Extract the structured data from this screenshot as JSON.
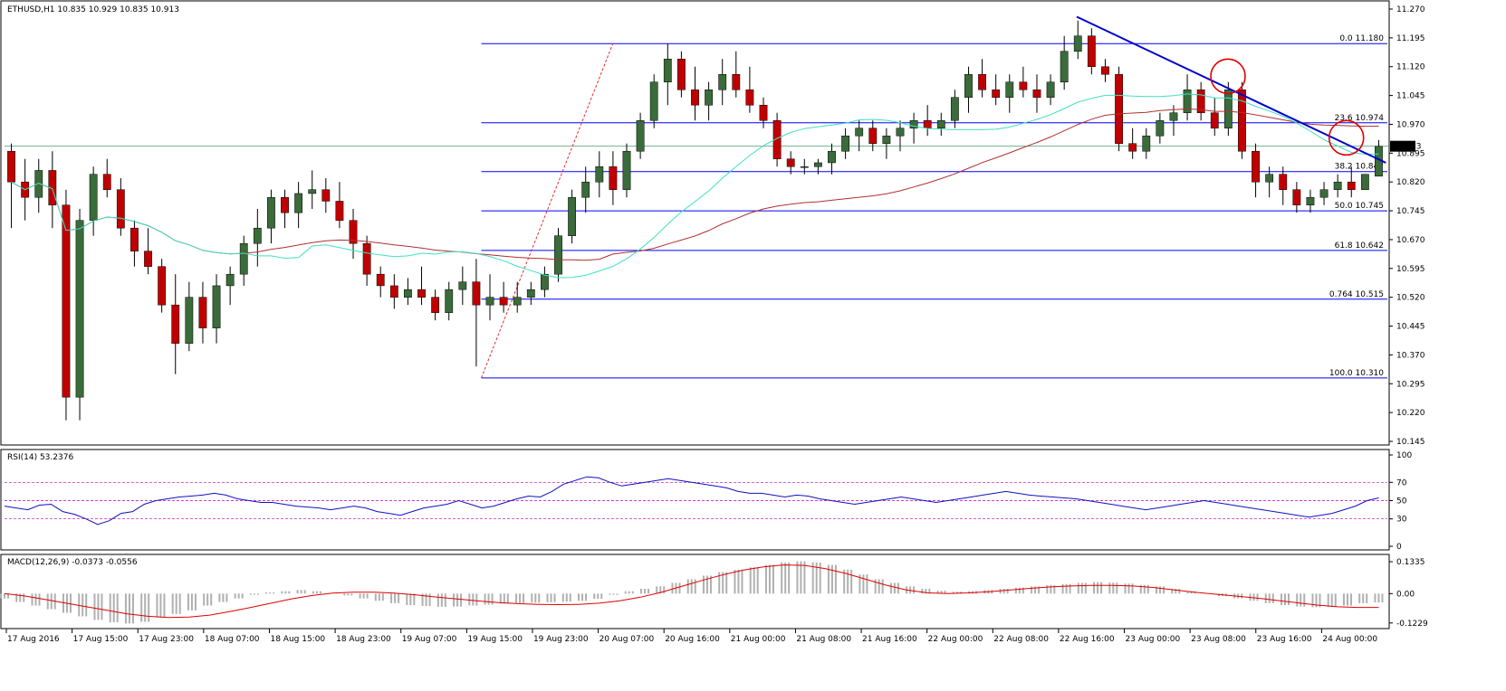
{
  "chart_data": {
    "type": "candlestick",
    "main": {
      "title": "ETHUSD,H1  10.835 10.929 10.835 10.913",
      "current_price_label": "10.913",
      "y_axis_ticks": [
        "11.270",
        "11.195",
        "11.120",
        "11.045",
        "10.970",
        "10.895",
        "10.820",
        "10.745",
        "10.670",
        "10.595",
        "10.520",
        "10.445",
        "10.370",
        "10.295",
        "10.220",
        "10.145"
      ],
      "ylim": [
        10.145,
        11.27
      ],
      "fib_levels": [
        {
          "label": "0.0  11.180",
          "value": 11.18
        },
        {
          "label": "23.6  10.974",
          "value": 10.974
        },
        {
          "label": "38.2  10.847",
          "value": 10.847
        },
        {
          "label": "50.0  10.745",
          "value": 10.745
        },
        {
          "label": "61.8  10.642",
          "value": 10.642
        },
        {
          "label": "0.764  10.515",
          "value": 10.515
        },
        {
          "label": "100.0  10.310",
          "value": 10.31
        }
      ],
      "trendline": {
        "from": [
          162,
          11.25
        ],
        "to": [
          209,
          10.87
        ],
        "color": "#0000cc"
      },
      "highlight_circles": [
        {
          "x": 185,
          "y": 11.095
        },
        {
          "x": 203,
          "y": 10.935
        }
      ],
      "colors": {
        "bull": "#3a6b3a",
        "bear": "#c00000",
        "fib": "#0000ff",
        "ma_slow": "#b03030",
        "ma_fast": "#40e0c0"
      }
    },
    "x_axis_labels": [
      {
        "bar": 0,
        "label": "17 Aug 2016"
      },
      {
        "bar": 10,
        "label": "17 Aug 15:00"
      },
      {
        "bar": 20,
        "label": "17 Aug 23:00"
      },
      {
        "bar": 30,
        "label": "18 Aug 07:00"
      },
      {
        "bar": 40,
        "label": "18 Aug 15:00"
      },
      {
        "bar": 50,
        "label": "18 Aug 23:00"
      },
      {
        "bar": 60,
        "label": "19 Aug 07:00"
      },
      {
        "bar": 70,
        "label": "19 Aug 15:00"
      },
      {
        "bar": 80,
        "label": "19 Aug 23:00"
      },
      {
        "bar": 90,
        "label": "20 Aug 07:00"
      },
      {
        "bar": 100,
        "label": "20 Aug 16:00"
      },
      {
        "bar": 110,
        "label": "21 Aug 00:00"
      },
      {
        "bar": 120,
        "label": "21 Aug 08:00"
      },
      {
        "bar": 130,
        "label": "21 Aug 16:00"
      },
      {
        "bar": 140,
        "label": "22 Aug 00:00"
      },
      {
        "bar": 150,
        "label": "22 Aug 08:00"
      },
      {
        "bar": 160,
        "label": "22 Aug 16:00"
      },
      {
        "bar": 170,
        "label": "23 Aug 00:00"
      },
      {
        "bar": 180,
        "label": "23 Aug 08:00"
      },
      {
        "bar": 190,
        "label": "23 Aug 16:00"
      },
      {
        "bar": 200,
        "label": "24 Aug 00:00"
      }
    ],
    "rsi": {
      "title": "RSI(14) 53.2376",
      "ticks": [
        "100",
        "70",
        "50",
        "30",
        "0"
      ],
      "ylim": [
        0,
        100
      ],
      "levels": [
        70,
        50,
        30
      ],
      "values": [
        44,
        42,
        40,
        45,
        46,
        38,
        35,
        30,
        24,
        28,
        36,
        38,
        46,
        50,
        52,
        54,
        55,
        56,
        58,
        56,
        52,
        50,
        48,
        48,
        46,
        44,
        43,
        42,
        40,
        42,
        44,
        42,
        38,
        36,
        34,
        38,
        42,
        44,
        46,
        50,
        46,
        42,
        44,
        48,
        52,
        55,
        54,
        60,
        68,
        72,
        76,
        75,
        70,
        66,
        68,
        70,
        72,
        74,
        72,
        70,
        68,
        66,
        64,
        60,
        58,
        58,
        56,
        54,
        56,
        55,
        52,
        50,
        48,
        46,
        48,
        50,
        52,
        54,
        52,
        50,
        48,
        50,
        52,
        54,
        56,
        58,
        60,
        58,
        56,
        55,
        54,
        53,
        52,
        50,
        48,
        46,
        44,
        42,
        40,
        42,
        44,
        46,
        48,
        50,
        48,
        46,
        44,
        42,
        40,
        38,
        36,
        34,
        32,
        34,
        36,
        40,
        44,
        50,
        53
      ]
    },
    "macd": {
      "title": "MACD(12,26,9) -0.0373 -0.0556",
      "ticks": [
        "0.1335",
        "0.00",
        "-0.1229"
      ],
      "ylim": [
        -0.135,
        0.145
      ],
      "histogram": [
        -0.02,
        -0.035,
        -0.05,
        -0.065,
        -0.08,
        -0.095,
        -0.11,
        -0.12,
        -0.125,
        -0.118,
        -0.1,
        -0.085,
        -0.07,
        -0.05,
        -0.035,
        -0.02,
        -0.005,
        0.005,
        0.01,
        0.015,
        0.01,
        0.002,
        -0.008,
        -0.02,
        -0.03,
        -0.04,
        -0.048,
        -0.052,
        -0.055,
        -0.054,
        -0.05,
        -0.046,
        -0.042,
        -0.04,
        -0.038,
        -0.036,
        -0.034,
        -0.03,
        -0.022,
        -0.005,
        0.01,
        0.02,
        0.03,
        0.045,
        0.06,
        0.075,
        0.09,
        0.1,
        0.11,
        0.12,
        0.13,
        0.135,
        0.13,
        0.12,
        0.1,
        0.08,
        0.06,
        0.045,
        0.03,
        0.02,
        0.012,
        0.008,
        0.01,
        0.015,
        0.02,
        0.025,
        0.03,
        0.035,
        0.04,
        0.045,
        0.048,
        0.046,
        0.042,
        0.036,
        0.03,
        0.02,
        0.01,
        0.0,
        -0.01,
        -0.02,
        -0.03,
        -0.04,
        -0.048,
        -0.054,
        -0.057,
        -0.056,
        -0.05,
        -0.04,
        -0.037
      ],
      "signal": [
        0.0,
        -0.01,
        -0.025,
        -0.04,
        -0.055,
        -0.07,
        -0.085,
        -0.095,
        -0.1,
        -0.098,
        -0.09,
        -0.075,
        -0.058,
        -0.04,
        -0.022,
        -0.008,
        0.002,
        0.006,
        0.006,
        0.002,
        -0.005,
        -0.014,
        -0.022,
        -0.03,
        -0.037,
        -0.042,
        -0.045,
        -0.046,
        -0.045,
        -0.04,
        -0.03,
        -0.015,
        0.005,
        0.03,
        0.055,
        0.078,
        0.098,
        0.112,
        0.12,
        0.118,
        0.105,
        0.085,
        0.06,
        0.035,
        0.015,
        0.003,
        0.0,
        0.003,
        0.008,
        0.015,
        0.022,
        0.028,
        0.032,
        0.034,
        0.034,
        0.032,
        0.026,
        0.016,
        0.006,
        -0.002,
        -0.01,
        -0.018,
        -0.028,
        -0.038,
        -0.048,
        -0.055,
        -0.058,
        -0.058
      ]
    },
    "candles": [
      [
        10.9,
        10.92,
        10.7,
        10.82
      ],
      [
        10.82,
        10.88,
        10.72,
        10.78
      ],
      [
        10.78,
        10.88,
        10.74,
        10.85
      ],
      [
        10.85,
        10.9,
        10.7,
        10.76
      ],
      [
        10.76,
        10.8,
        10.2,
        10.26
      ],
      [
        10.26,
        10.75,
        10.2,
        10.72
      ],
      [
        10.72,
        10.86,
        10.68,
        10.84
      ],
      [
        10.84,
        10.88,
        10.78,
        10.8
      ],
      [
        10.8,
        10.83,
        10.68,
        10.7
      ],
      [
        10.7,
        10.72,
        10.6,
        10.64
      ],
      [
        10.64,
        10.7,
        10.58,
        10.6
      ],
      [
        10.6,
        10.62,
        10.48,
        10.5
      ],
      [
        10.5,
        10.58,
        10.32,
        10.4
      ],
      [
        10.4,
        10.56,
        10.38,
        10.52
      ],
      [
        10.52,
        10.56,
        10.4,
        10.44
      ],
      [
        10.44,
        10.58,
        10.4,
        10.55
      ],
      [
        10.55,
        10.6,
        10.5,
        10.58
      ],
      [
        10.58,
        10.68,
        10.55,
        10.66
      ],
      [
        10.66,
        10.75,
        10.6,
        10.7
      ],
      [
        10.7,
        10.8,
        10.66,
        10.78
      ],
      [
        10.78,
        10.8,
        10.7,
        10.74
      ],
      [
        10.74,
        10.82,
        10.7,
        10.79
      ],
      [
        10.79,
        10.85,
        10.75,
        10.8
      ],
      [
        10.8,
        10.83,
        10.74,
        10.77
      ],
      [
        10.77,
        10.82,
        10.7,
        10.72
      ],
      [
        10.72,
        10.75,
        10.62,
        10.66
      ],
      [
        10.66,
        10.68,
        10.55,
        10.58
      ],
      [
        10.58,
        10.6,
        10.52,
        10.55
      ],
      [
        10.55,
        10.58,
        10.49,
        10.52
      ],
      [
        10.52,
        10.57,
        10.5,
        10.54
      ],
      [
        10.54,
        10.6,
        10.5,
        10.52
      ],
      [
        10.52,
        10.54,
        10.46,
        10.48
      ],
      [
        10.48,
        10.56,
        10.46,
        10.54
      ],
      [
        10.54,
        10.6,
        10.5,
        10.56
      ],
      [
        10.56,
        10.62,
        10.34,
        10.5
      ],
      [
        10.5,
        10.58,
        10.46,
        10.52
      ],
      [
        10.52,
        10.56,
        10.48,
        10.5
      ],
      [
        10.5,
        10.56,
        10.48,
        10.52
      ],
      [
        10.52,
        10.56,
        10.5,
        10.54
      ],
      [
        10.54,
        10.6,
        10.52,
        10.58
      ],
      [
        10.58,
        10.7,
        10.56,
        10.68
      ],
      [
        10.68,
        10.8,
        10.66,
        10.78
      ],
      [
        10.78,
        10.86,
        10.74,
        10.82
      ],
      [
        10.82,
        10.9,
        10.78,
        10.86
      ],
      [
        10.86,
        10.9,
        10.76,
        10.8
      ],
      [
        10.8,
        10.92,
        10.78,
        10.9
      ],
      [
        10.9,
        11.0,
        10.88,
        10.98
      ],
      [
        10.98,
        11.1,
        10.96,
        11.08
      ],
      [
        11.08,
        11.18,
        11.02,
        11.14
      ],
      [
        11.14,
        11.16,
        11.04,
        11.06
      ],
      [
        11.06,
        11.12,
        10.98,
        11.02
      ],
      [
        11.02,
        11.08,
        10.98,
        11.06
      ],
      [
        11.06,
        11.14,
        11.02,
        11.1
      ],
      [
        11.1,
        11.16,
        11.04,
        11.06
      ],
      [
        11.06,
        11.12,
        11.0,
        11.02
      ],
      [
        11.02,
        11.04,
        10.96,
        10.98
      ],
      [
        10.98,
        11.0,
        10.86,
        10.88
      ],
      [
        10.88,
        10.9,
        10.84,
        10.86
      ],
      [
        10.86,
        10.88,
        10.84,
        10.86
      ],
      [
        10.86,
        10.88,
        10.84,
        10.87
      ],
      [
        10.87,
        10.92,
        10.84,
        10.9
      ],
      [
        10.9,
        10.96,
        10.88,
        10.94
      ],
      [
        10.94,
        10.98,
        10.9,
        10.96
      ],
      [
        10.96,
        10.98,
        10.9,
        10.92
      ],
      [
        10.92,
        10.96,
        10.88,
        10.94
      ],
      [
        10.94,
        10.98,
        10.9,
        10.96
      ],
      [
        10.96,
        11.0,
        10.92,
        10.98
      ],
      [
        10.98,
        11.02,
        10.94,
        10.96
      ],
      [
        10.96,
        11.0,
        10.94,
        10.98
      ],
      [
        10.98,
        11.06,
        10.96,
        11.04
      ],
      [
        11.04,
        11.12,
        11.0,
        11.1
      ],
      [
        11.1,
        11.14,
        11.04,
        11.06
      ],
      [
        11.06,
        11.1,
        11.02,
        11.04
      ],
      [
        11.04,
        11.1,
        11.0,
        11.08
      ],
      [
        11.08,
        11.12,
        11.04,
        11.06
      ],
      [
        11.06,
        11.1,
        11.0,
        11.04
      ],
      [
        11.04,
        11.1,
        11.02,
        11.08
      ],
      [
        11.08,
        11.2,
        11.06,
        11.16
      ],
      [
        11.16,
        11.24,
        11.14,
        11.2
      ],
      [
        11.2,
        11.22,
        11.1,
        11.12
      ],
      [
        11.12,
        11.14,
        11.08,
        11.1
      ],
      [
        11.1,
        11.12,
        10.9,
        10.92
      ],
      [
        10.92,
        10.96,
        10.88,
        10.9
      ],
      [
        10.9,
        10.96,
        10.88,
        10.94
      ],
      [
        10.94,
        11.0,
        10.92,
        10.98
      ],
      [
        10.98,
        11.02,
        10.94,
        11.0
      ],
      [
        11.0,
        11.1,
        10.98,
        11.06
      ],
      [
        11.06,
        11.08,
        10.98,
        11.0
      ],
      [
        11.0,
        11.04,
        10.94,
        10.96
      ],
      [
        10.96,
        11.08,
        10.94,
        11.06
      ],
      [
        11.06,
        11.08,
        10.88,
        10.9
      ],
      [
        10.9,
        10.92,
        10.78,
        10.82
      ],
      [
        10.82,
        10.86,
        10.78,
        10.84
      ],
      [
        10.84,
        10.86,
        10.76,
        10.8
      ],
      [
        10.8,
        10.82,
        10.74,
        10.76
      ],
      [
        10.76,
        10.8,
        10.74,
        10.78
      ],
      [
        10.78,
        10.82,
        10.76,
        10.8
      ],
      [
        10.8,
        10.84,
        10.78,
        10.82
      ],
      [
        10.82,
        10.86,
        10.78,
        10.8
      ],
      [
        10.8,
        10.84,
        10.8,
        10.84
      ],
      [
        10.835,
        10.929,
        10.835,
        10.913
      ]
    ]
  }
}
